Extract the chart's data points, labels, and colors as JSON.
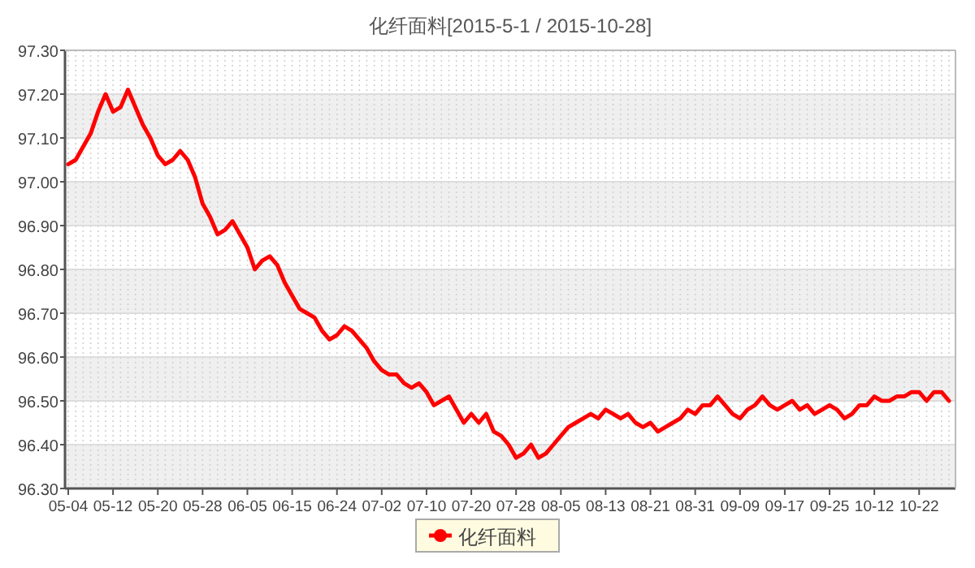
{
  "chart_data": {
    "type": "line",
    "title": "化纤面料[2015-5-1 / 2015-10-28]",
    "categories": [
      "05-04",
      null,
      null,
      null,
      null,
      null,
      "05-12",
      null,
      null,
      null,
      null,
      null,
      "05-20",
      null,
      null,
      null,
      null,
      null,
      "05-28",
      null,
      null,
      null,
      null,
      null,
      "06-05",
      null,
      null,
      null,
      null,
      null,
      "06-15",
      null,
      null,
      null,
      null,
      null,
      "06-24",
      null,
      null,
      null,
      null,
      null,
      "07-02",
      null,
      null,
      null,
      null,
      null,
      "07-10",
      null,
      null,
      null,
      null,
      null,
      "07-20",
      null,
      null,
      null,
      null,
      null,
      "07-28",
      null,
      null,
      null,
      null,
      null,
      "08-05",
      null,
      null,
      null,
      null,
      null,
      "08-13",
      null,
      null,
      null,
      null,
      null,
      "08-21",
      null,
      null,
      null,
      null,
      null,
      "08-31",
      null,
      null,
      null,
      null,
      null,
      "09-09",
      null,
      null,
      null,
      null,
      null,
      "09-17",
      null,
      null,
      null,
      null,
      null,
      "09-25",
      null,
      null,
      null,
      null,
      null,
      "10-12",
      null,
      null,
      null,
      null,
      null,
      "10-22",
      null,
      null,
      null,
      null
    ],
    "series": [
      {
        "name": "化纤面料",
        "color": "#ff0000",
        "values": [
          97.04,
          97.05,
          97.08,
          97.11,
          97.16,
          97.2,
          97.16,
          97.17,
          97.21,
          97.17,
          97.13,
          97.1,
          97.06,
          97.04,
          97.05,
          97.07,
          97.05,
          97.01,
          96.95,
          96.92,
          96.88,
          96.89,
          96.91,
          96.88,
          96.85,
          96.8,
          96.82,
          96.83,
          96.81,
          96.77,
          96.74,
          96.71,
          96.7,
          96.69,
          96.66,
          96.64,
          96.65,
          96.67,
          96.66,
          96.64,
          96.62,
          96.59,
          96.57,
          96.56,
          96.56,
          96.54,
          96.53,
          96.54,
          96.52,
          96.49,
          96.5,
          96.51,
          96.48,
          96.45,
          96.47,
          96.45,
          96.47,
          96.43,
          96.42,
          96.4,
          96.37,
          96.38,
          96.4,
          96.37,
          96.38,
          96.4,
          96.42,
          96.44,
          96.45,
          96.46,
          96.47,
          96.46,
          96.48,
          96.47,
          96.46,
          96.47,
          96.45,
          96.44,
          96.45,
          96.43,
          96.44,
          96.45,
          96.46,
          96.48,
          96.47,
          96.49,
          96.49,
          96.51,
          96.49,
          96.47,
          96.46,
          96.48,
          96.49,
          96.51,
          96.49,
          96.48,
          96.49,
          96.5,
          96.48,
          96.49,
          96.47,
          96.48,
          96.49,
          96.48,
          96.46,
          96.47,
          96.49,
          96.49,
          96.51,
          96.5,
          96.5,
          96.51,
          96.51,
          96.52,
          96.52,
          96.5,
          96.52,
          96.52,
          96.5
        ]
      }
    ],
    "ylim": [
      96.3,
      97.3
    ],
    "yticks": [
      {
        "value": 96.3,
        "label": "96.30"
      },
      {
        "value": 96.4,
        "label": "96.40"
      },
      {
        "value": 96.5,
        "label": "96.50"
      },
      {
        "value": 96.6,
        "label": "96.60"
      },
      {
        "value": 96.7,
        "label": "96.70"
      },
      {
        "value": 96.8,
        "label": "96.80"
      },
      {
        "value": 96.9,
        "label": "96.90"
      },
      {
        "value": 97.0,
        "label": "97.00"
      },
      {
        "value": 97.1,
        "label": "97.10"
      },
      {
        "value": 97.2,
        "label": "97.20"
      },
      {
        "value": 97.3,
        "label": "97.30"
      }
    ],
    "grid": true,
    "legend": "bottom",
    "marker": "none",
    "line_style": "solid"
  }
}
